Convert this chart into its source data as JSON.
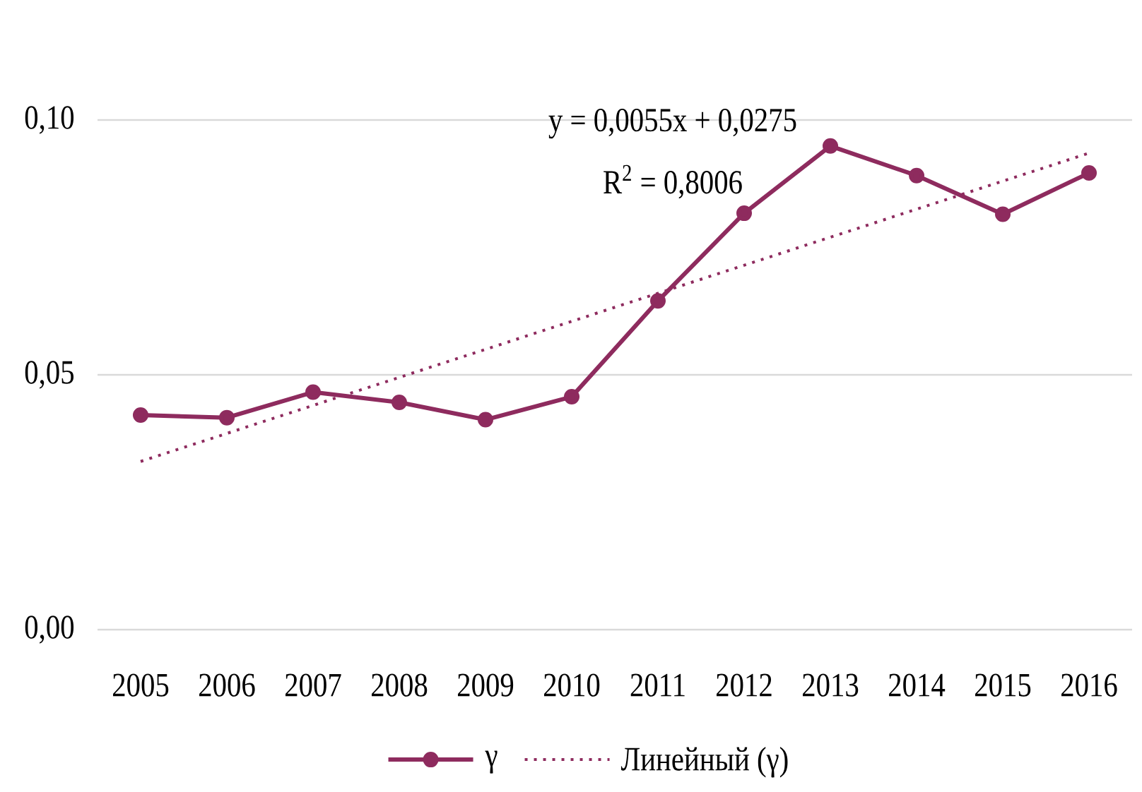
{
  "chart_data": {
    "type": "line",
    "categories": [
      "2005",
      "2006",
      "2007",
      "2008",
      "2009",
      "2010",
      "2011",
      "2012",
      "2013",
      "2014",
      "2015",
      "2016"
    ],
    "series": [
      {
        "name": "γ",
        "color": "#8e2b5e",
        "marker": "circle",
        "line_style": "solid",
        "values": [
          0.0421,
          0.0416,
          0.0466,
          0.0446,
          0.0412,
          0.0457,
          0.0645,
          0.0817,
          0.0949,
          0.0891,
          0.0815,
          0.0896
        ]
      },
      {
        "name": "Линейный (γ)",
        "color": "#8e2b5e",
        "marker": "none",
        "line_style": "dotted",
        "values": [
          0.033,
          0.0385,
          0.044,
          0.0495,
          0.055,
          0.0605,
          0.066,
          0.0715,
          0.077,
          0.0825,
          0.088,
          0.0935
        ]
      }
    ],
    "ylim": [
      0,
      0.1
    ],
    "yticks": [
      {
        "value": 0,
        "label": "0,00"
      },
      {
        "value": 0.05,
        "label": "0,05"
      },
      {
        "value": 0.1,
        "label": "0,10"
      }
    ],
    "grid": "y",
    "legend": "bottom",
    "annotations": [
      "y = 0,0055x + 0,0275",
      "R$^{2}$ = 0,8006"
    ]
  }
}
